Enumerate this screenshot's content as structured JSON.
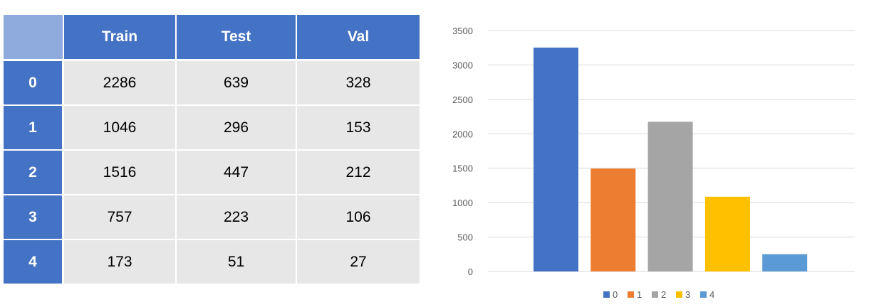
{
  "table": {
    "columns": [
      "Train",
      "Test",
      "Val"
    ],
    "rows": [
      {
        "label": "0",
        "values": [
          "2286",
          "639",
          "328"
        ]
      },
      {
        "label": "1",
        "values": [
          "1046",
          "296",
          "153"
        ]
      },
      {
        "label": "2",
        "values": [
          "1516",
          "447",
          "212"
        ]
      },
      {
        "label": "3",
        "values": [
          "757",
          "223",
          "106"
        ]
      },
      {
        "label": "4",
        "values": [
          "173",
          "51",
          "27"
        ]
      }
    ]
  },
  "chart_data": {
    "type": "bar",
    "categories": [
      "0",
      "1",
      "2",
      "3",
      "4"
    ],
    "values": [
      3253,
      1495,
      2175,
      1086,
      251
    ],
    "colors": [
      "#4472c4",
      "#ed7d31",
      "#a5a5a5",
      "#ffc000",
      "#5b9bd5"
    ],
    "title": "",
    "xlabel": "",
    "ylabel": "",
    "ylim": [
      0,
      3500
    ],
    "yticks": [
      0,
      500,
      1000,
      1500,
      2000,
      2500,
      3000,
      3500
    ],
    "grid": true,
    "legend": {
      "position": "bottom",
      "entries": [
        "0",
        "1",
        "2",
        "3",
        "4"
      ]
    }
  }
}
